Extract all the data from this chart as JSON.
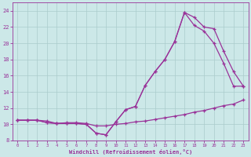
{
  "bg_color": "#cce8e8",
  "line_color": "#993399",
  "grid_color": "#aacccc",
  "xlim": [
    -0.5,
    23.5
  ],
  "ylim": [
    8,
    25
  ],
  "xticks": [
    0,
    1,
    2,
    3,
    4,
    5,
    6,
    7,
    8,
    9,
    10,
    11,
    12,
    13,
    14,
    15,
    16,
    17,
    18,
    19,
    20,
    21,
    22,
    23
  ],
  "yticks": [
    8,
    10,
    12,
    14,
    16,
    18,
    20,
    22,
    24
  ],
  "xlabel": "Windchill (Refroidissement éolien,°C)",
  "line1_x": [
    0,
    1,
    2,
    3,
    4,
    5,
    6,
    7,
    8,
    9,
    10,
    11,
    12,
    13,
    14,
    15,
    16,
    17,
    18,
    19,
    20,
    21,
    22,
    23
  ],
  "line1_y": [
    10.5,
    10.5,
    10.5,
    10.4,
    10.1,
    10.2,
    10.2,
    10.1,
    9.8,
    9.8,
    10.0,
    10.1,
    10.3,
    10.4,
    10.6,
    10.8,
    11.0,
    11.2,
    11.5,
    11.7,
    12.0,
    12.3,
    12.5,
    13.0
  ],
  "line2_x": [
    0,
    1,
    2,
    3,
    4,
    5,
    6,
    7,
    8,
    9,
    10,
    11,
    12,
    13,
    14,
    15,
    16,
    17,
    18,
    19,
    20,
    21,
    22,
    23
  ],
  "line2_y": [
    10.5,
    10.5,
    10.5,
    10.2,
    10.1,
    10.1,
    10.1,
    10.0,
    8.9,
    8.7,
    10.3,
    11.8,
    12.2,
    14.8,
    16.5,
    18.0,
    20.2,
    23.8,
    23.2,
    22.0,
    21.8,
    19.0,
    16.5,
    14.7
  ],
  "line3_x": [
    0,
    1,
    2,
    3,
    4,
    5,
    6,
    7,
    8,
    9,
    10,
    11,
    12,
    13,
    14,
    15,
    16,
    17,
    18,
    19,
    20,
    21,
    22,
    23
  ],
  "line3_y": [
    10.5,
    10.5,
    10.5,
    10.2,
    10.1,
    10.1,
    10.1,
    10.0,
    8.9,
    8.7,
    10.3,
    11.8,
    12.2,
    14.8,
    16.5,
    18.0,
    20.2,
    23.8,
    22.2,
    21.5,
    20.0,
    17.5,
    14.7,
    14.7
  ]
}
